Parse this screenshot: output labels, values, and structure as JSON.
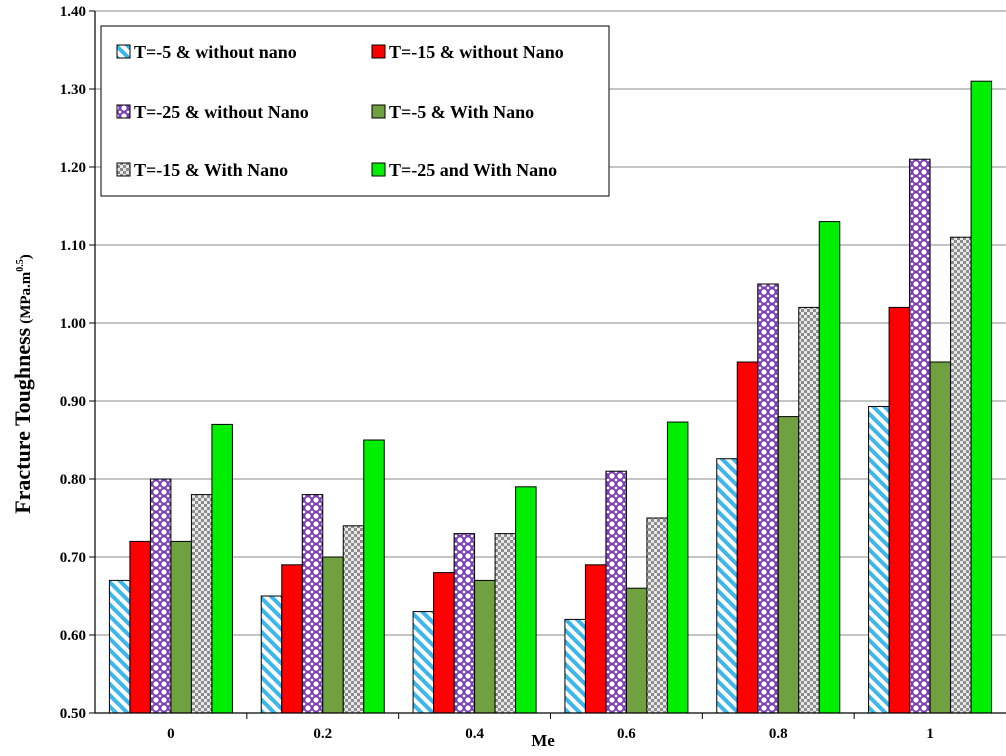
{
  "chart_data": {
    "type": "bar",
    "title": "",
    "xlabel": "Me",
    "ylabel_main": "Fracture Toughness",
    "ylabel_unit_prefix": "(MPa.m",
    "ylabel_unit_exp": "0.5",
    "ylabel_unit_suffix": ")",
    "ylim": [
      0.5,
      1.4
    ],
    "yticks": [
      "0.50",
      "0.60",
      "0.70",
      "0.80",
      "0.90",
      "1.00",
      "1.10",
      "1.20",
      "1.30",
      "1.40"
    ],
    "categories": [
      "0",
      "0.2",
      "0.4",
      "0.6",
      "0.8",
      "1"
    ],
    "grid": true,
    "legend_position": "top-left",
    "series": [
      {
        "name": "T=-5 & without nano",
        "values": [
          0.67,
          0.65,
          0.63,
          0.62,
          0.826,
          0.893
        ],
        "fill": "diag",
        "colors": [
          "#3fb6ea",
          "#ffffff"
        ]
      },
      {
        "name": "T=-15 & without Nano",
        "values": [
          0.72,
          0.69,
          0.68,
          0.69,
          0.95,
          1.02
        ],
        "fill": "solid",
        "colors": [
          "#ff0000"
        ]
      },
      {
        "name": "T=-25 & without Nano",
        "values": [
          0.8,
          0.78,
          0.73,
          0.81,
          1.05,
          1.21
        ],
        "fill": "dots",
        "colors": [
          "#7b3fb5",
          "#ffffff"
        ]
      },
      {
        "name": "T=-5 & With Nano",
        "values": [
          0.72,
          0.7,
          0.67,
          0.66,
          0.88,
          0.95
        ],
        "fill": "solid",
        "colors": [
          "#70a040"
        ]
      },
      {
        "name": "T=-15 & With Nano",
        "values": [
          0.78,
          0.74,
          0.73,
          0.75,
          1.02,
          1.11
        ],
        "fill": "check",
        "colors": [
          "#8c8c8c",
          "#e8e8e8"
        ]
      },
      {
        "name": "T=-25 and With Nano",
        "values": [
          0.87,
          0.85,
          0.79,
          0.873,
          1.13,
          1.31
        ],
        "fill": "solid",
        "colors": [
          "#00ee00"
        ]
      }
    ]
  }
}
